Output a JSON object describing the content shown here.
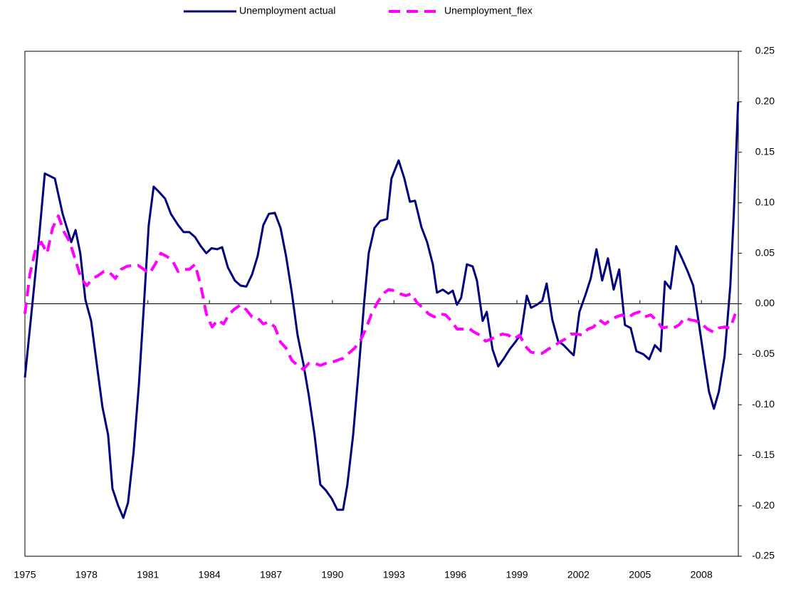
{
  "chart_data": {
    "type": "line",
    "legend": "top",
    "xlim": [
      1975,
      2009.8
    ],
    "xticks": [
      1975,
      1978,
      1981,
      1984,
      1987,
      1990,
      1993,
      1996,
      1999,
      2002,
      2005,
      2008
    ],
    "ylim": [
      -0.25,
      0.25
    ],
    "yticks": [
      -0.25,
      {
        "value": -0.2,
        "label": "-0.20"
      },
      -0.15,
      {
        "value": -0.1,
        "label": "-0.10"
      },
      -0.05,
      {
        "value": 0,
        "label": "0.00"
      },
      0.05,
      {
        "value": 0.1,
        "label": "0.10"
      },
      0.15,
      {
        "value": 0.2,
        "label": "0.20"
      },
      0.25
    ],
    "series": [
      {
        "name": "Unemployment actual",
        "color": "#00007f",
        "dash": false,
        "x": [
          1975.0,
          1975.35,
          1975.7,
          1975.97,
          1976.46,
          1976.84,
          1977.26,
          1977.47,
          1977.7,
          1977.95,
          1978.23,
          1978.5,
          1978.78,
          1979.06,
          1979.27,
          1979.55,
          1979.8,
          1980.03,
          1980.3,
          1980.56,
          1980.8,
          1981.04,
          1981.28,
          1981.53,
          1981.84,
          1982.12,
          1982.47,
          1982.74,
          1983.02,
          1983.3,
          1983.58,
          1983.85,
          1984.1,
          1984.38,
          1984.62,
          1984.9,
          1985.24,
          1985.52,
          1985.8,
          1986.08,
          1986.35,
          1986.63,
          1986.9,
          1987.19,
          1987.47,
          1987.74,
          1988.02,
          1988.3,
          1988.58,
          1988.85,
          1989.13,
          1989.41,
          1989.69,
          1989.97,
          1990.24,
          1990.52,
          1990.73,
          1991.01,
          1991.28,
          1991.56,
          1991.77,
          1992.05,
          1992.33,
          1992.67,
          1992.88,
          1993.23,
          1993.51,
          1993.78,
          1994.03,
          1994.34,
          1994.62,
          1994.9,
          1995.1,
          1995.38,
          1995.66,
          1995.87,
          1996.08,
          1996.28,
          1996.56,
          1996.84,
          1997.05,
          1997.33,
          1997.53,
          1997.81,
          1998.09,
          1998.37,
          1998.65,
          1998.92,
          1999.2,
          1999.48,
          1999.69,
          1999.97,
          2000.24,
          2000.45,
          2000.73,
          2001.01,
          2001.28,
          2001.56,
          2001.77,
          2002.05,
          2002.33,
          2002.6,
          2002.88,
          2003.16,
          2003.44,
          2003.72,
          2003.99,
          2004.27,
          2004.55,
          2004.83,
          2005.17,
          2005.45,
          2005.73,
          2006.01,
          2006.22,
          2006.49,
          2006.77,
          2007.05,
          2007.33,
          2007.6,
          2007.88,
          2008.16,
          2008.37,
          2008.61,
          2008.85,
          2009.13,
          2009.41,
          2009.58,
          2009.79
        ],
        "values": [
          -0.073,
          -0.003,
          0.068,
          0.129,
          0.124,
          0.089,
          0.061,
          0.073,
          0.05,
          0.004,
          -0.017,
          -0.059,
          -0.102,
          -0.13,
          -0.183,
          -0.2,
          -0.212,
          -0.197,
          -0.147,
          -0.08,
          -0.003,
          0.078,
          0.116,
          0.111,
          0.104,
          0.089,
          0.078,
          0.071,
          0.071,
          0.066,
          0.057,
          0.05,
          0.055,
          0.054,
          0.056,
          0.036,
          0.023,
          0.018,
          0.017,
          0.029,
          0.047,
          0.078,
          0.089,
          0.09,
          0.075,
          0.047,
          0.011,
          -0.031,
          -0.059,
          -0.091,
          -0.13,
          -0.179,
          -0.185,
          -0.193,
          -0.204,
          -0.204,
          -0.179,
          -0.13,
          -0.066,
          0.004,
          0.05,
          0.075,
          0.082,
          0.084,
          0.124,
          0.142,
          0.124,
          0.101,
          0.102,
          0.076,
          0.061,
          0.039,
          0.011,
          0.014,
          0.01,
          0.013,
          -0.001,
          0.006,
          0.039,
          0.037,
          0.023,
          -0.017,
          -0.008,
          -0.045,
          -0.062,
          -0.054,
          -0.045,
          -0.038,
          -0.03,
          0.008,
          -0.004,
          -0.001,
          0.003,
          0.02,
          -0.016,
          -0.037,
          -0.041,
          -0.047,
          -0.051,
          -0.008,
          0.008,
          0.025,
          0.054,
          0.023,
          0.045,
          0.014,
          0.034,
          -0.021,
          -0.024,
          -0.047,
          -0.05,
          -0.055,
          -0.041,
          -0.047,
          0.022,
          0.015,
          0.057,
          0.045,
          0.032,
          0.018,
          -0.02,
          -0.059,
          -0.087,
          -0.104,
          -0.087,
          -0.052,
          0.018,
          0.089,
          0.2
        ]
      },
      {
        "name": "Unemployment_flex",
        "color": "#ff00ff",
        "dash": true,
        "x": [
          1975.0,
          1975.24,
          1975.52,
          1975.8,
          1976.08,
          1976.35,
          1976.63,
          1976.91,
          1977.19,
          1977.47,
          1977.74,
          1978.02,
          1978.3,
          1978.58,
          1978.85,
          1979.13,
          1979.41,
          1979.69,
          1979.97,
          1980.24,
          1980.52,
          1980.8,
          1981.08,
          1981.35,
          1981.63,
          1981.91,
          1982.19,
          1982.47,
          1982.74,
          1983.02,
          1983.3,
          1983.58,
          1983.85,
          1984.13,
          1984.41,
          1984.69,
          1984.97,
          1985.24,
          1985.52,
          1985.8,
          1986.08,
          1986.35,
          1986.63,
          1986.91,
          1987.19,
          1987.47,
          1987.74,
          1988.02,
          1988.3,
          1988.58,
          1988.85,
          1989.13,
          1989.41,
          1989.69,
          1989.97,
          1990.24,
          1990.52,
          1990.8,
          1991.08,
          1991.35,
          1991.63,
          1991.91,
          1992.19,
          1992.47,
          1992.74,
          1993.02,
          1993.3,
          1993.58,
          1993.85,
          1994.13,
          1994.41,
          1994.69,
          1994.97,
          1995.24,
          1995.52,
          1995.8,
          1996.08,
          1996.35,
          1996.63,
          1996.91,
          1997.19,
          1997.47,
          1997.74,
          1998.02,
          1998.3,
          1998.58,
          1998.85,
          1999.13,
          1999.41,
          1999.69,
          1999.97,
          2000.24,
          2000.52,
          2000.8,
          2001.08,
          2001.35,
          2001.63,
          2001.91,
          2002.19,
          2002.47,
          2002.74,
          2003.02,
          2003.3,
          2003.58,
          2003.85,
          2004.13,
          2004.41,
          2004.69,
          2004.97,
          2005.24,
          2005.52,
          2005.8,
          2006.08,
          2006.35,
          2006.63,
          2006.91,
          2007.19,
          2007.47,
          2007.74,
          2008.02,
          2008.3,
          2008.58,
          2008.85,
          2009.13,
          2009.41,
          2009.65
        ],
        "values": [
          -0.01,
          0.029,
          0.054,
          0.061,
          0.05,
          0.075,
          0.087,
          0.071,
          0.061,
          0.043,
          0.025,
          0.018,
          0.025,
          0.028,
          0.032,
          0.031,
          0.025,
          0.034,
          0.037,
          0.038,
          0.038,
          0.034,
          0.03,
          0.039,
          0.05,
          0.047,
          0.043,
          0.032,
          0.034,
          0.034,
          0.039,
          0.018,
          -0.01,
          -0.023,
          -0.016,
          -0.02,
          -0.01,
          -0.005,
          -0.001,
          -0.006,
          -0.013,
          -0.014,
          -0.02,
          -0.018,
          -0.023,
          -0.038,
          -0.044,
          -0.056,
          -0.061,
          -0.065,
          -0.059,
          -0.059,
          -0.061,
          -0.059,
          -0.058,
          -0.056,
          -0.054,
          -0.049,
          -0.044,
          -0.037,
          -0.025,
          -0.01,
          0.001,
          0.01,
          0.014,
          0.013,
          0.01,
          0.008,
          0.01,
          0.001,
          -0.004,
          -0.01,
          -0.013,
          -0.01,
          -0.011,
          -0.017,
          -0.025,
          -0.025,
          -0.024,
          -0.028,
          -0.031,
          -0.037,
          -0.035,
          -0.032,
          -0.03,
          -0.031,
          -0.035,
          -0.031,
          -0.042,
          -0.048,
          -0.049,
          -0.049,
          -0.045,
          -0.042,
          -0.038,
          -0.035,
          -0.03,
          -0.03,
          -0.031,
          -0.025,
          -0.023,
          -0.016,
          -0.02,
          -0.016,
          -0.013,
          -0.011,
          -0.014,
          -0.01,
          -0.008,
          -0.013,
          -0.011,
          -0.016,
          -0.024,
          -0.023,
          -0.024,
          -0.021,
          -0.014,
          -0.016,
          -0.017,
          -0.02,
          -0.025,
          -0.028,
          -0.024,
          -0.023,
          -0.024,
          -0.01
        ]
      }
    ]
  }
}
